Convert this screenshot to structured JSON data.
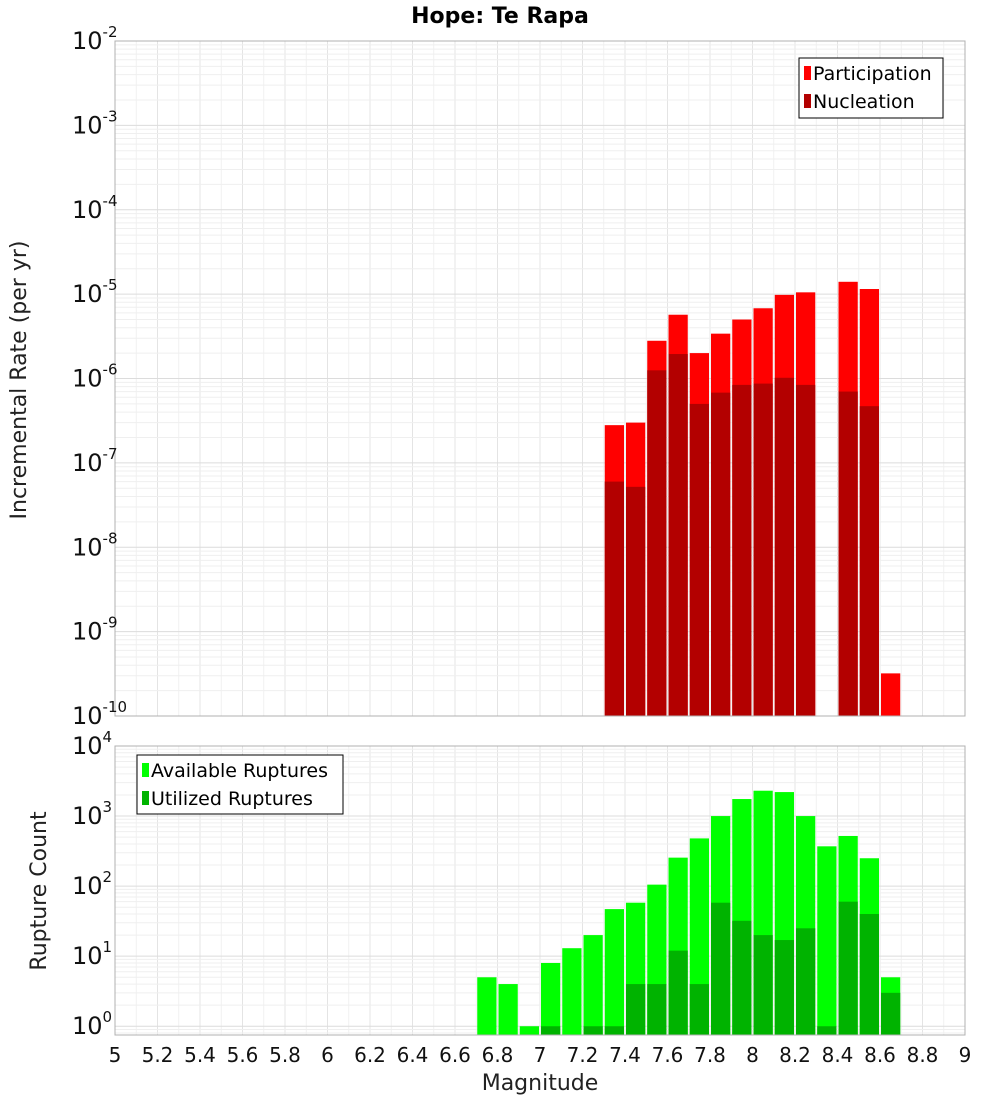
{
  "chart_data": [
    {
      "type": "bar",
      "title": "Hope: Te Rapa",
      "xlabel": "",
      "ylabel": "Incremental Rate (per yr)",
      "yscale": "log",
      "xlim": [
        5,
        9
      ],
      "ylim": [
        1e-10,
        0.01
      ],
      "grid": true,
      "legend_position": "top-right",
      "bin_width": 0.1,
      "x": [
        7.35,
        7.45,
        7.55,
        7.65,
        7.75,
        7.85,
        7.95,
        8.05,
        8.15,
        8.25,
        8.45,
        8.55,
        8.65
      ],
      "series": [
        {
          "name": "Participation",
          "color": "#ff0000",
          "values": [
            2.8e-07,
            3e-07,
            2.8e-06,
            5.7e-06,
            2e-06,
            3.4e-06,
            5e-06,
            6.8e-06,
            9.8e-06,
            1.05e-05,
            1.4e-05,
            1.15e-05,
            3.2e-10
          ]
        },
        {
          "name": "Nucleation",
          "color": "#b30000",
          "values": [
            6e-08,
            5.2e-08,
            1.25e-06,
            1.95e-06,
            5e-07,
            6.8e-07,
            8.4e-07,
            8.7e-07,
            1.02e-06,
            8.4e-07,
            7e-07,
            4.7e-07,
            null
          ]
        }
      ],
      "ytick_exponents": [
        -10,
        -9,
        -8,
        -7,
        -6,
        -5,
        -4,
        -3,
        -2
      ]
    },
    {
      "type": "bar",
      "title": "",
      "xlabel": "Magnitude",
      "ylabel": "Rupture Count",
      "yscale": "log",
      "xlim": [
        5,
        9
      ],
      "ylim": [
        0.75,
        10000.0
      ],
      "grid": true,
      "legend_position": "top-left",
      "bin_width": 0.1,
      "x": [
        6.75,
        6.85,
        6.95,
        7.05,
        7.15,
        7.25,
        7.35,
        7.45,
        7.55,
        7.65,
        7.75,
        7.85,
        7.95,
        8.05,
        8.15,
        8.25,
        8.35,
        8.45,
        8.55,
        8.65
      ],
      "series": [
        {
          "name": "Available Ruptures",
          "color": "#00ff00",
          "values": [
            5,
            4,
            1,
            8,
            13,
            20,
            47,
            58,
            105,
            255,
            480,
            1000,
            1750,
            2300,
            2200,
            1000,
            370,
            520,
            250,
            5
          ]
        },
        {
          "name": "Utilized Ruptures",
          "color": "#00b300",
          "values": [
            null,
            null,
            null,
            1,
            null,
            1,
            1,
            4,
            4,
            12,
            4,
            58,
            32,
            20,
            17,
            25,
            1,
            60,
            40,
            3
          ]
        }
      ],
      "xticks": [
        "5",
        "5.2",
        "5.4",
        "5.6",
        "5.8",
        "6",
        "6.2",
        "6.4",
        "6.6",
        "6.8",
        "7",
        "7.2",
        "7.4",
        "7.6",
        "7.8",
        "8",
        "8.2",
        "8.4",
        "8.6",
        "8.8",
        "9"
      ],
      "ytick_exponents": [
        0,
        1,
        2,
        3,
        4
      ]
    }
  ]
}
